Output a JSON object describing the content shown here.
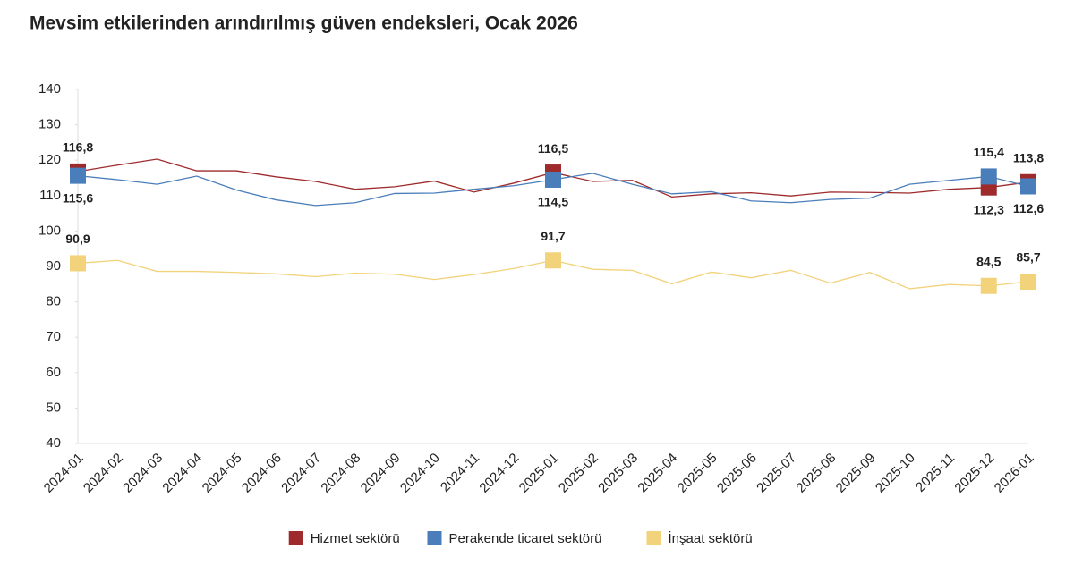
{
  "chart_data": {
    "type": "line",
    "title": "Mevsim etkilerinden arındırılmış güven endeksleri, Ocak 2026",
    "x": [
      "2024-01",
      "2024-02",
      "2024-03",
      "2024-04",
      "2024-05",
      "2024-06",
      "2024-07",
      "2024-08",
      "2024-09",
      "2024-10",
      "2024-11",
      "2024-12",
      "2025-01",
      "2025-02",
      "2025-03",
      "2025-04",
      "2025-05",
      "2025-06",
      "2025-07",
      "2025-08",
      "2025-09",
      "2025-10",
      "2025-11",
      "2025-12",
      "2026-01"
    ],
    "series": [
      {
        "name": "Hizmet sektörü",
        "color": "#9e2a2b",
        "values": [
          116.8,
          118.6,
          120.3,
          117.0,
          117.0,
          115.3,
          114.0,
          111.8,
          112.5,
          114.1,
          111.0,
          113.5,
          116.5,
          114.0,
          114.3,
          109.6,
          110.5,
          110.8,
          109.9,
          111.0,
          110.9,
          110.7,
          111.8,
          112.3,
          113.8
        ],
        "value_labels": [
          "116,8",
          null,
          null,
          null,
          null,
          null,
          null,
          null,
          null,
          null,
          null,
          null,
          "116,5",
          null,
          null,
          null,
          null,
          null,
          null,
          null,
          null,
          null,
          null,
          "112,3",
          "113,8"
        ]
      },
      {
        "name": "Perakende ticaret sektörü",
        "color": "#4a7ebb",
        "values": [
          115.6,
          114.5,
          113.2,
          115.5,
          111.6,
          108.8,
          107.2,
          108.0,
          110.6,
          110.7,
          111.8,
          112.8,
          114.5,
          116.3,
          113.2,
          110.5,
          111.1,
          108.5,
          108.0,
          108.9,
          109.3,
          113.2,
          114.3,
          115.4,
          112.6
        ],
        "value_labels": [
          "115,6",
          null,
          null,
          null,
          null,
          null,
          null,
          null,
          null,
          null,
          null,
          null,
          "114,5",
          null,
          null,
          null,
          null,
          null,
          null,
          null,
          null,
          null,
          null,
          "115,4",
          "112,6"
        ]
      },
      {
        "name": "İnşaat sektörü",
        "color": "#f2d27a",
        "values": [
          90.9,
          91.7,
          88.6,
          88.6,
          88.3,
          87.9,
          87.1,
          88.1,
          87.8,
          86.3,
          87.7,
          89.4,
          91.7,
          89.2,
          88.9,
          85.1,
          88.4,
          86.8,
          88.9,
          85.3,
          88.3,
          83.7,
          84.9,
          84.5,
          85.7
        ],
        "value_labels": [
          "90,9",
          null,
          null,
          null,
          null,
          null,
          null,
          null,
          null,
          null,
          null,
          null,
          "91,7",
          null,
          null,
          null,
          null,
          null,
          null,
          null,
          null,
          null,
          null,
          "84,5",
          "85,7"
        ]
      }
    ],
    "ylim": [
      40,
      140
    ],
    "yticks": [
      40,
      50,
      60,
      70,
      80,
      90,
      100,
      110,
      120,
      130,
      140
    ],
    "grid": false,
    "legend": "bottom"
  }
}
